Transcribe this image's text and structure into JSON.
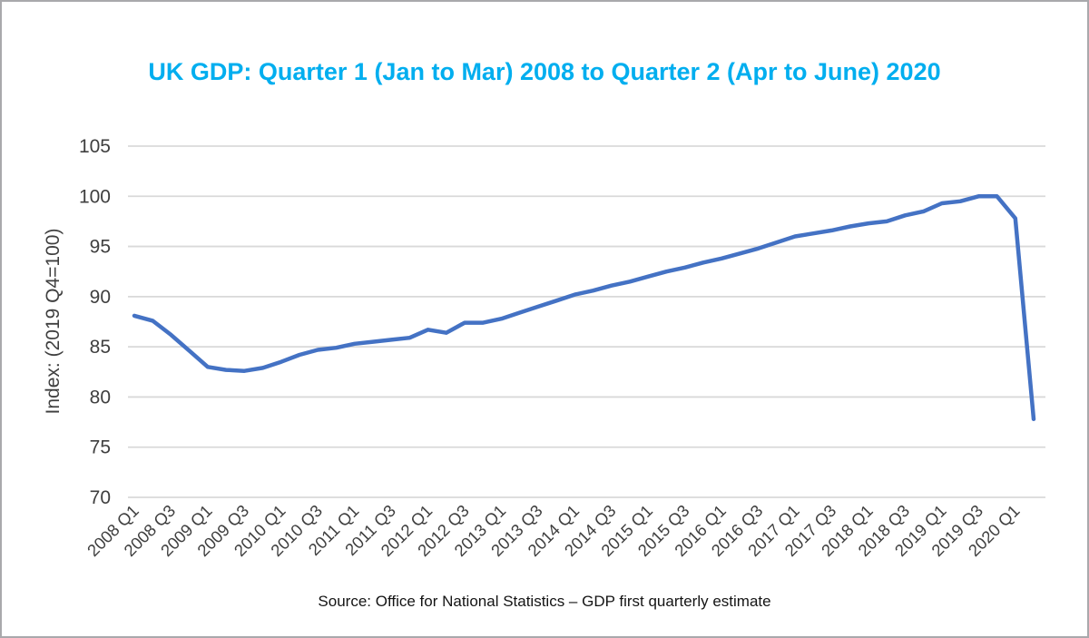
{
  "chart_data": {
    "type": "line",
    "title": "UK GDP: Quarter 1 (Jan to Mar) 2008 to Quarter 2 (Apr to June) 2020",
    "ylabel": "Index: (2019 Q4=100)",
    "xlabel": "",
    "source": "Source: Office for National Statistics – GDP first quarterly estimate",
    "legend": "none",
    "grid": "horizontal",
    "ylim": [
      70,
      105
    ],
    "y_ticks": [
      105,
      100,
      95,
      90,
      85,
      80,
      75,
      70
    ],
    "x_tick_every": 2,
    "x_tick_labels_shown": [
      "2008 Q1",
      "2008 Q3",
      "2009 Q1",
      "2009 Q3",
      "2010 Q1",
      "2010 Q3",
      "2011 Q1",
      "2011 Q3",
      "2012 Q1",
      "2012 Q3",
      "2013 Q1",
      "2013 Q3",
      "2014 Q1",
      "2014 Q3",
      "2015 Q1",
      "2015 Q3",
      "2016 Q1",
      "2016 Q3",
      "2017 Q1",
      "2017 Q3",
      "2018 Q1",
      "2018 Q3",
      "2019 Q1",
      "2019 Q3",
      "2020 Q1"
    ],
    "categories": [
      "2008 Q1",
      "2008 Q2",
      "2008 Q3",
      "2008 Q4",
      "2009 Q1",
      "2009 Q2",
      "2009 Q3",
      "2009 Q4",
      "2010 Q1",
      "2010 Q2",
      "2010 Q3",
      "2010 Q4",
      "2011 Q1",
      "2011 Q2",
      "2011 Q3",
      "2011 Q4",
      "2012 Q1",
      "2012 Q2",
      "2012 Q3",
      "2012 Q4",
      "2013 Q1",
      "2013 Q2",
      "2013 Q3",
      "2013 Q4",
      "2014 Q1",
      "2014 Q2",
      "2014 Q3",
      "2014 Q4",
      "2015 Q1",
      "2015 Q2",
      "2015 Q3",
      "2015 Q4",
      "2016 Q1",
      "2016 Q2",
      "2016 Q3",
      "2016 Q4",
      "2017 Q1",
      "2017 Q2",
      "2017 Q3",
      "2017 Q4",
      "2018 Q1",
      "2018 Q2",
      "2018 Q3",
      "2018 Q4",
      "2019 Q1",
      "2019 Q2",
      "2019 Q3",
      "2019 Q4",
      "2020 Q1",
      "2020 Q2"
    ],
    "series": [
      {
        "name": "UK GDP index (2019 Q4=100)",
        "values": [
          88.1,
          87.6,
          86.2,
          84.6,
          83.0,
          82.7,
          82.6,
          82.9,
          83.5,
          84.2,
          84.7,
          84.9,
          85.3,
          85.5,
          85.7,
          85.9,
          86.7,
          86.4,
          87.4,
          87.4,
          87.8,
          88.4,
          89.0,
          89.6,
          90.2,
          90.6,
          91.1,
          91.5,
          92.0,
          92.5,
          92.9,
          93.4,
          93.8,
          94.3,
          94.8,
          95.4,
          96.0,
          96.3,
          96.6,
          97.0,
          97.3,
          97.5,
          98.1,
          98.5,
          99.3,
          99.5,
          100.0,
          100.0,
          97.8,
          77.8
        ]
      }
    ],
    "colors": {
      "title": "#00AEEF",
      "line": "#4472C4",
      "gridline": "#D9D9D9",
      "axis_text": "#3F3F3F",
      "source_text": "#141414",
      "frame_border": "#A9A9AC",
      "background": "#FFFFFF"
    }
  }
}
